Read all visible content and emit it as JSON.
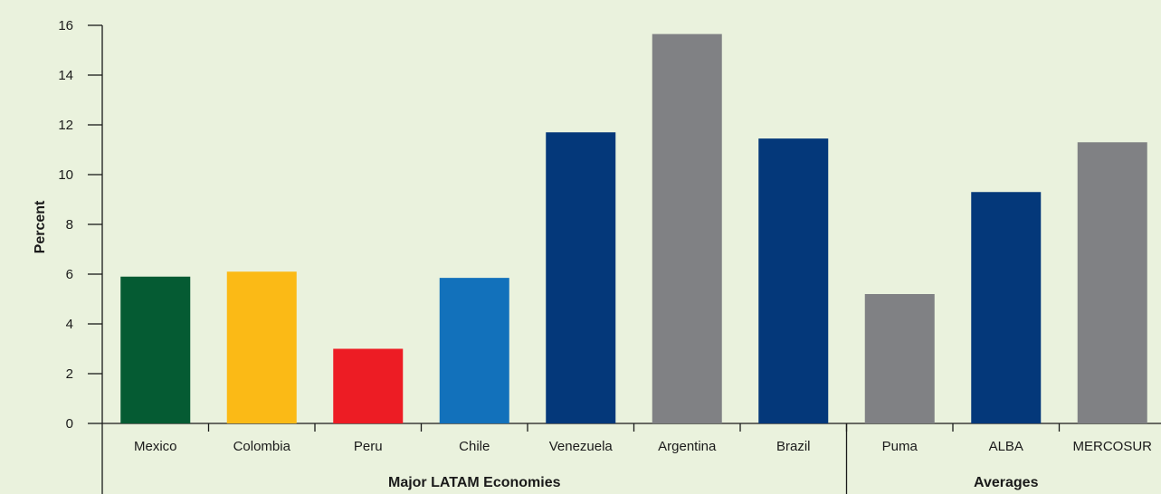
{
  "chart_data": {
    "type": "bar",
    "title": "",
    "xlabel": "",
    "ylabel": "Percent",
    "ylim": [
      0,
      16
    ],
    "yticks": [
      0,
      2,
      4,
      6,
      8,
      10,
      12,
      14,
      16
    ],
    "grid": false,
    "legend": "none",
    "categories": [
      "Mexico",
      "Colombia",
      "Peru",
      "Chile",
      "Venezuela",
      "Argentina",
      "Brazil",
      "Puma",
      "ALBA",
      "MERCOSUR"
    ],
    "values": [
      5.9,
      6.1,
      3.0,
      5.85,
      11.7,
      15.65,
      11.45,
      5.2,
      9.3,
      11.3
    ],
    "colors": [
      "#055b33",
      "#fbba16",
      "#ed1c24",
      "#1271bb",
      "#04387a",
      "#808184",
      "#04387a",
      "#808184",
      "#04387a",
      "#808184"
    ],
    "groups": [
      {
        "label": "Major LATAM Economies",
        "members": [
          "Mexico",
          "Colombia",
          "Peru",
          "Chile",
          "Venezuela",
          "Argentina",
          "Brazil"
        ]
      },
      {
        "label": "Averages",
        "members": [
          "Puma",
          "ALBA",
          "MERCOSUR"
        ]
      }
    ]
  }
}
